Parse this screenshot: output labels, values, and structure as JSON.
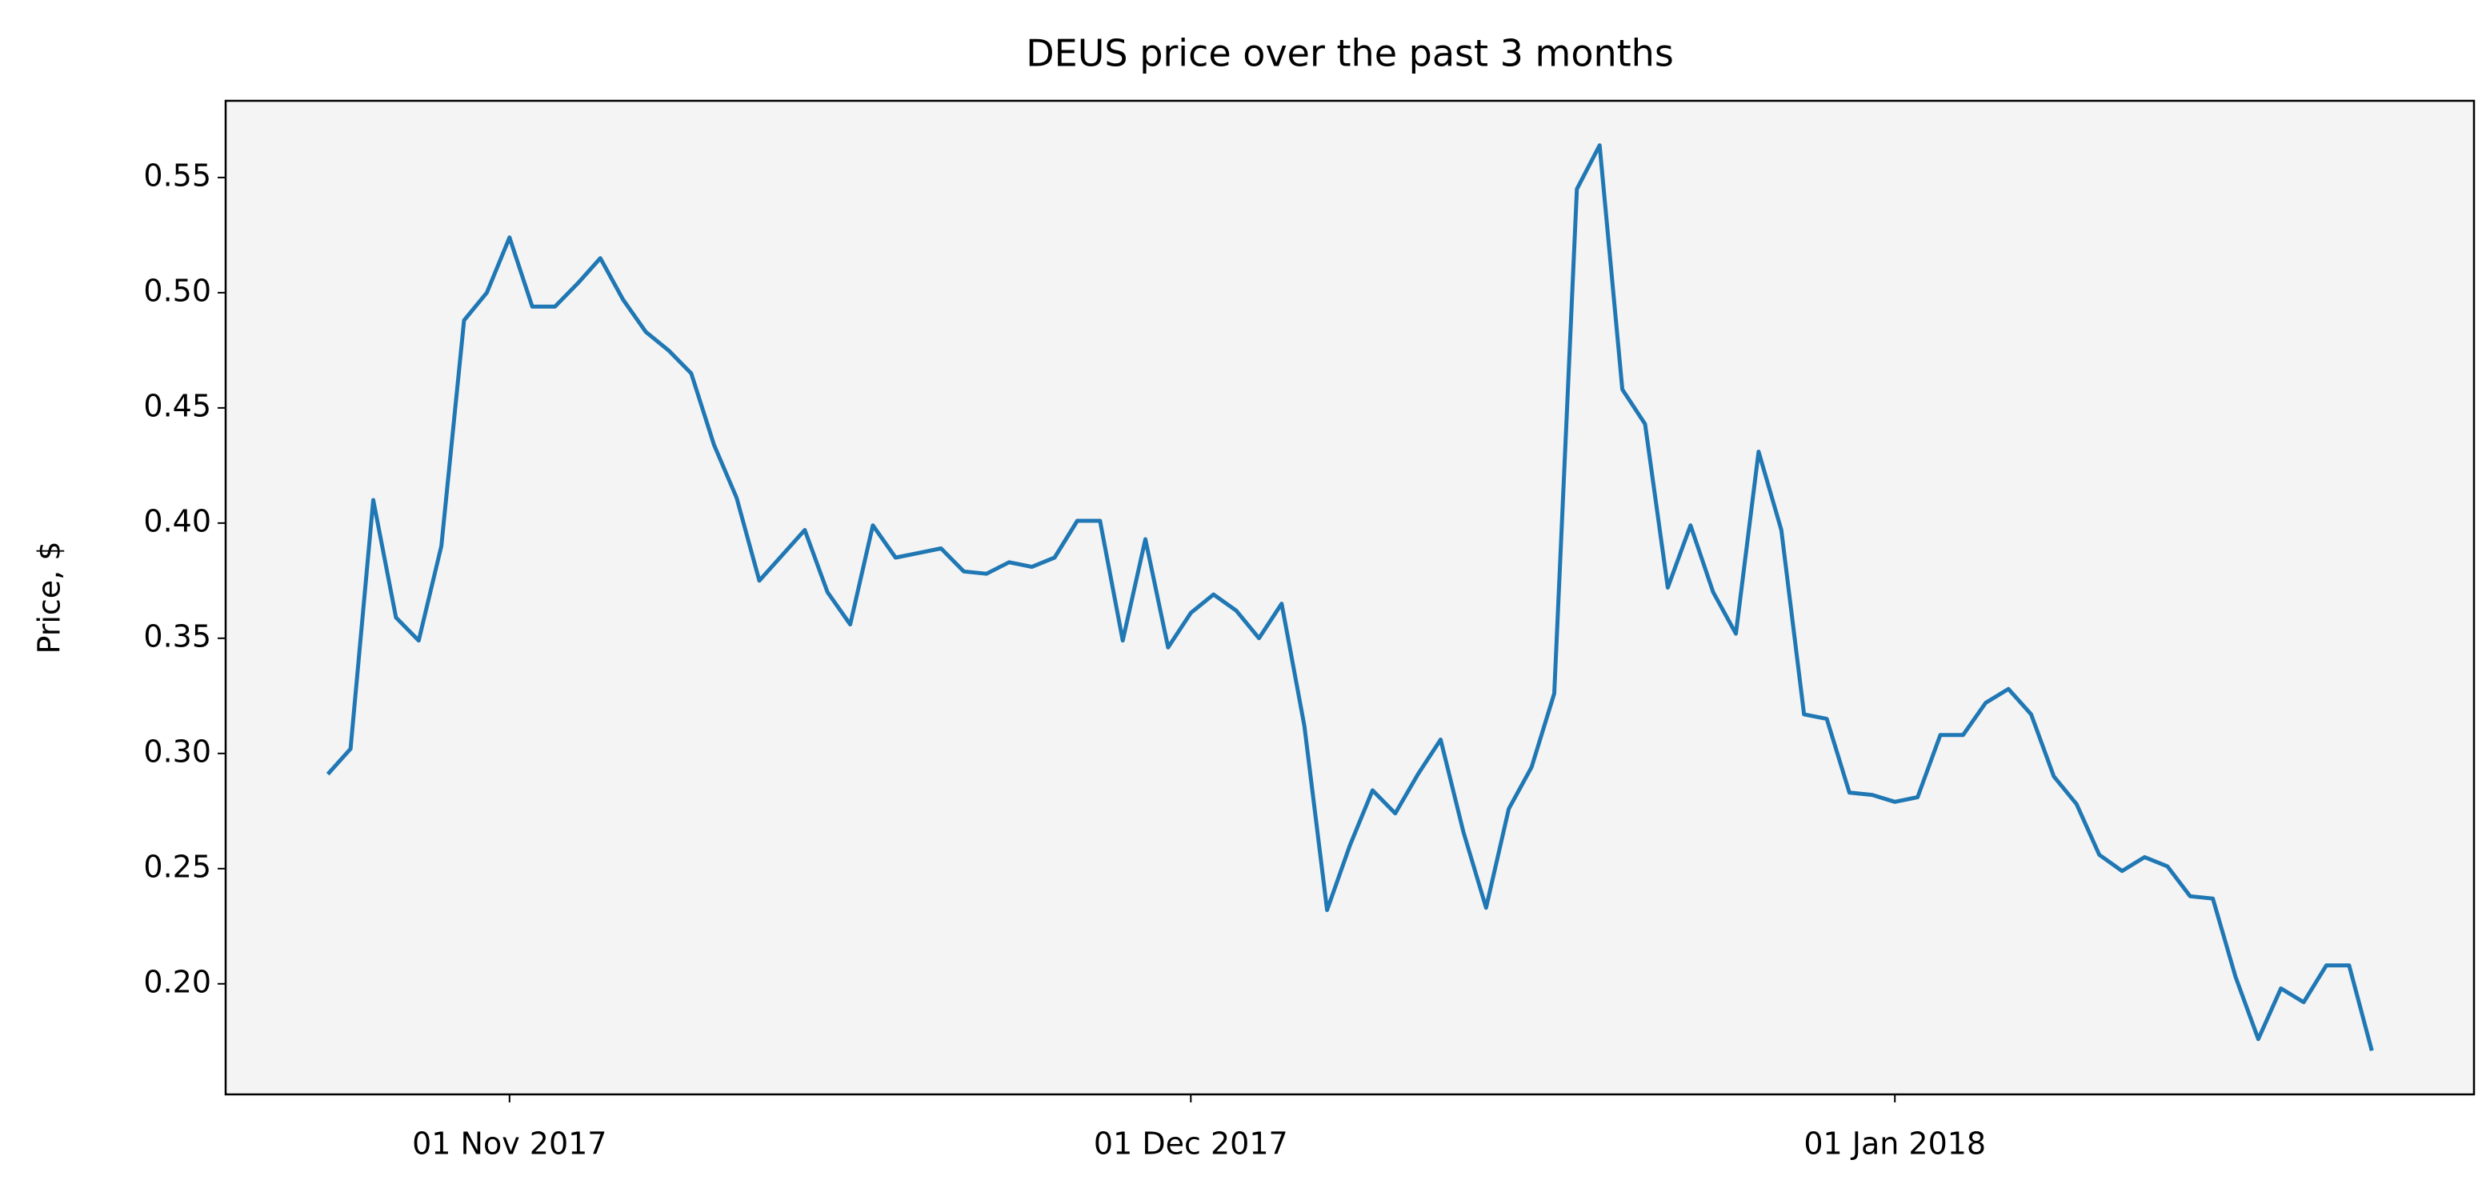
{
  "chart_data": {
    "type": "line",
    "title": "DEUS price over the past 3 months",
    "ylabel": "Price, $",
    "x": [
      "2017-10-24",
      "2017-10-25",
      "2017-10-26",
      "2017-10-27",
      "2017-10-28",
      "2017-10-29",
      "2017-10-30",
      "2017-10-31",
      "2017-11-01",
      "2017-11-02",
      "2017-11-03",
      "2017-11-04",
      "2017-11-05",
      "2017-11-06",
      "2017-11-07",
      "2017-11-08",
      "2017-11-09",
      "2017-11-10",
      "2017-11-11",
      "2017-11-12",
      "2017-11-13",
      "2017-11-14",
      "2017-11-15",
      "2017-11-16",
      "2017-11-17",
      "2017-11-18",
      "2017-11-19",
      "2017-11-20",
      "2017-11-21",
      "2017-11-22",
      "2017-11-23",
      "2017-11-24",
      "2017-11-25",
      "2017-11-26",
      "2017-11-27",
      "2017-11-28",
      "2017-11-29",
      "2017-11-30",
      "2017-12-01",
      "2017-12-02",
      "2017-12-03",
      "2017-12-04",
      "2017-12-05",
      "2017-12-06",
      "2017-12-07",
      "2017-12-08",
      "2017-12-09",
      "2017-12-10",
      "2017-12-11",
      "2017-12-12",
      "2017-12-13",
      "2017-12-14",
      "2017-12-15",
      "2017-12-16",
      "2017-12-17",
      "2017-12-18",
      "2017-12-19",
      "2017-12-20",
      "2017-12-21",
      "2017-12-22",
      "2017-12-23",
      "2017-12-24",
      "2017-12-25",
      "2017-12-26",
      "2017-12-27",
      "2017-12-28",
      "2017-12-29",
      "2017-12-30",
      "2017-12-31",
      "2018-01-01",
      "2018-01-02",
      "2018-01-03",
      "2018-01-04",
      "2018-01-05",
      "2018-01-06",
      "2018-01-07",
      "2018-01-08",
      "2018-01-09",
      "2018-01-10",
      "2018-01-11",
      "2018-01-12",
      "2018-01-13",
      "2018-01-14",
      "2018-01-15",
      "2018-01-16",
      "2018-01-17",
      "2018-01-18",
      "2018-01-19",
      "2018-01-20",
      "2018-01-21",
      "2018-01-22"
    ],
    "series": [
      {
        "name": "DEUS",
        "color": "#1f77b4",
        "values": [
          0.291,
          0.302,
          0.41,
          0.359,
          0.349,
          0.39,
          0.488,
          0.5,
          0.524,
          0.494,
          0.494,
          0.504,
          0.515,
          0.497,
          0.483,
          0.475,
          0.465,
          0.434,
          0.411,
          0.375,
          0.386,
          0.397,
          0.37,
          0.356,
          0.399,
          0.385,
          0.387,
          0.389,
          0.379,
          0.378,
          0.383,
          0.381,
          0.385,
          0.401,
          0.401,
          0.349,
          0.393,
          0.346,
          0.361,
          0.369,
          0.362,
          0.35,
          0.365,
          0.312,
          0.232,
          0.26,
          0.284,
          0.274,
          0.291,
          0.306,
          0.266,
          0.233,
          0.276,
          0.294,
          0.326,
          0.545,
          0.564,
          0.458,
          0.443,
          0.372,
          0.399,
          0.37,
          0.352,
          0.431,
          0.397,
          0.317,
          0.315,
          0.283,
          0.282,
          0.279,
          0.281,
          0.308,
          0.308,
          0.322,
          0.328,
          0.317,
          0.29,
          0.278,
          0.256,
          0.249,
          0.255,
          0.251,
          0.238,
          0.237,
          0.203,
          0.176,
          0.198,
          0.192,
          0.208,
          0.208,
          0.171
        ]
      }
    ],
    "xlim": [
      "2017-10-19T12:00:00Z",
      "2018-01-26T12:00:00Z"
    ],
    "xticks": [
      {
        "value": "2017-11-01",
        "label": "01 Nov 2017"
      },
      {
        "value": "2017-12-01",
        "label": "01 Dec 2017"
      },
      {
        "value": "2018-01-01",
        "label": "01 Jan 2018"
      }
    ],
    "ylim": [
      0.152,
      0.5833
    ],
    "yticks": [
      {
        "value": 0.2,
        "label": "0.20"
      },
      {
        "value": 0.25,
        "label": "0.25"
      },
      {
        "value": 0.3,
        "label": "0.30"
      },
      {
        "value": 0.35,
        "label": "0.35"
      },
      {
        "value": 0.4,
        "label": "0.40"
      },
      {
        "value": 0.45,
        "label": "0.45"
      },
      {
        "value": 0.5,
        "label": "0.50"
      },
      {
        "value": 0.55,
        "label": "0.55"
      }
    ],
    "background": "#f4f4f4",
    "grid": false
  }
}
